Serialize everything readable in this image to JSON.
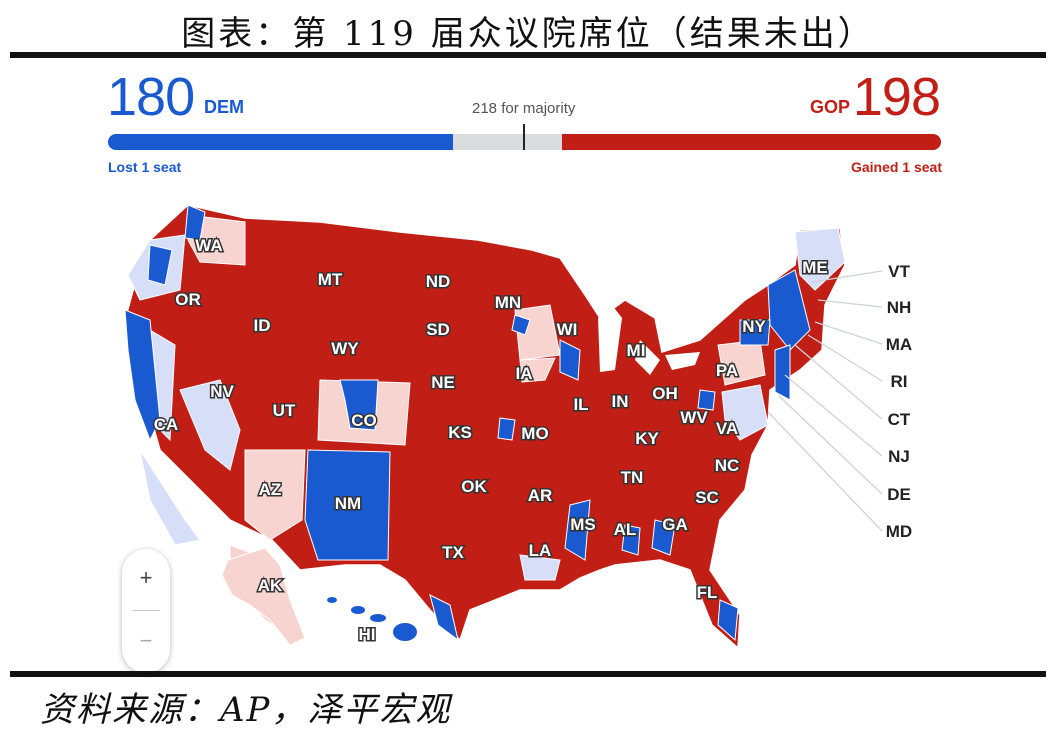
{
  "figure": {
    "title": "图表：第 119 届众议院席位（结果未出）",
    "source": "资料来源：AP，泽平宏观"
  },
  "scoreboard": {
    "dem_count": "180",
    "dem_label": "DEM",
    "gop_count": "198",
    "gop_label": "GOP",
    "majority_text": "218 for majority",
    "dem_change": "Lost 1 seat",
    "gop_change": "Gained 1 seat",
    "total_seats": 435,
    "majority_seats": 218,
    "dem_seats": 180,
    "gop_seats": 198
  },
  "colors": {
    "dem": "#1a5ad1",
    "dem_leaning": "#d7def7",
    "gop": "#c11f15",
    "gop_leaning": "#f7d4cf",
    "undecided": "#d9dde0"
  },
  "map": {
    "state_labels": [
      "WA",
      "OR",
      "MT",
      "ND",
      "MN",
      "ID",
      "SD",
      "WI",
      "WY",
      "MI",
      "NY",
      "NV",
      "NE",
      "IA",
      "PA",
      "UT",
      "CO",
      "IL",
      "IN",
      "OH",
      "CA",
      "KS",
      "MO",
      "WV",
      "VA",
      "KY",
      "NC",
      "TN",
      "AZ",
      "NM",
      "OK",
      "AR",
      "SC",
      "MS",
      "AL",
      "GA",
      "TX",
      "LA",
      "FL",
      "AK",
      "HI",
      "ME"
    ],
    "callout_labels": [
      "VT",
      "NH",
      "MA",
      "RI",
      "CT",
      "NJ",
      "DE",
      "MD"
    ]
  },
  "zoom": {
    "plus": "+",
    "minus": "−"
  }
}
